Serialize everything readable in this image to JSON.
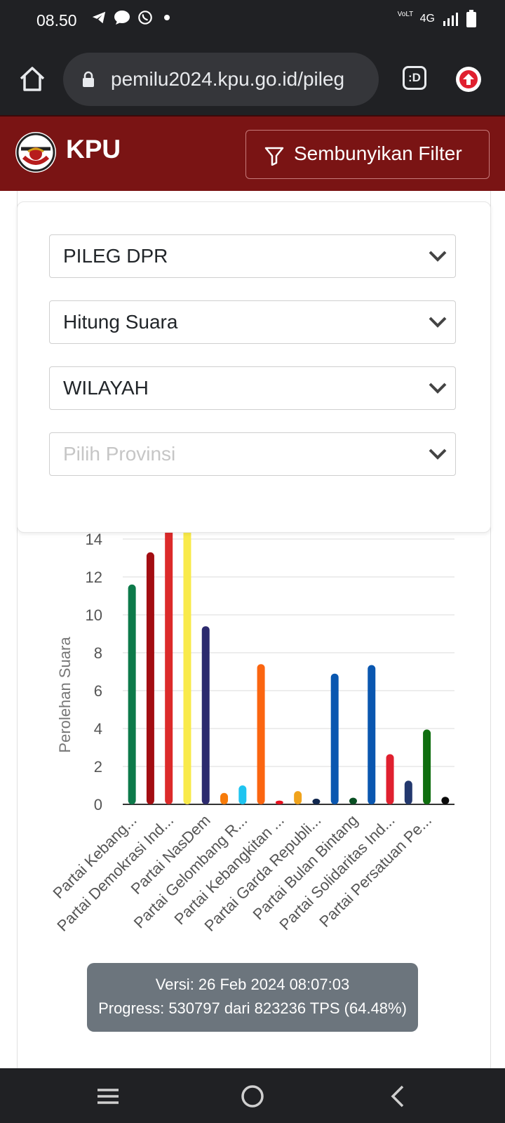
{
  "status_bar": {
    "time": "08.50",
    "network": "4G",
    "volte": "VoLTE"
  },
  "browser": {
    "url": "pemilu2024.kpu.go.id/pileg",
    "tab_switcher_label": ":D"
  },
  "header": {
    "brand": "KPU",
    "filter_button_label": "Sembunyikan Filter"
  },
  "filters": {
    "election_type": "PILEG DPR",
    "count_type": "Hitung Suara",
    "region_type": "WILAYAH",
    "province_placeholder": "Pilih Provinsi"
  },
  "chart_data": {
    "type": "bar",
    "ylabel": "Perolehan Suara",
    "xlabel": "",
    "ylim": [
      0,
      14
    ],
    "yticks": [
      0,
      2,
      4,
      6,
      8,
      10,
      12,
      14
    ],
    "grid": true,
    "tick_labels": [
      "Partai Kebang...",
      "Partai Demokrasi Ind...",
      "Partai NasDem",
      "Partai Gelombang R...",
      "Partai Kebangkitan ...",
      "Partai Garda Republi...",
      "Partai Bulan Bintang",
      "Partai Solidaritas Ind...",
      "Partai Persatuan Pe..."
    ],
    "values": [
      11.6,
      13.3,
      14.6,
      14.8,
      9.4,
      0.6,
      1.0,
      7.4,
      0.2,
      0.7,
      0.3,
      6.9,
      0.35,
      7.35,
      2.65,
      1.25,
      3.95,
      0.4
    ],
    "colors": [
      "#0d7a4a",
      "#a30d12",
      "#dc2a2a",
      "#f9ea4a",
      "#2c2a6e",
      "#f77b0a",
      "#1fc4f0",
      "#fb6510",
      "#e8101e",
      "#f0a31c",
      "#10264e",
      "#0a57b0",
      "#084f22",
      "#0a57b0",
      "#e0202f",
      "#23386e",
      "#0f6e0f",
      "#0a0a0a"
    ]
  },
  "version": {
    "line1": "Versi: 26 Feb 2024 08:07:03",
    "line2": "Progress: 530797 dari 823236 TPS (64.48%)"
  }
}
